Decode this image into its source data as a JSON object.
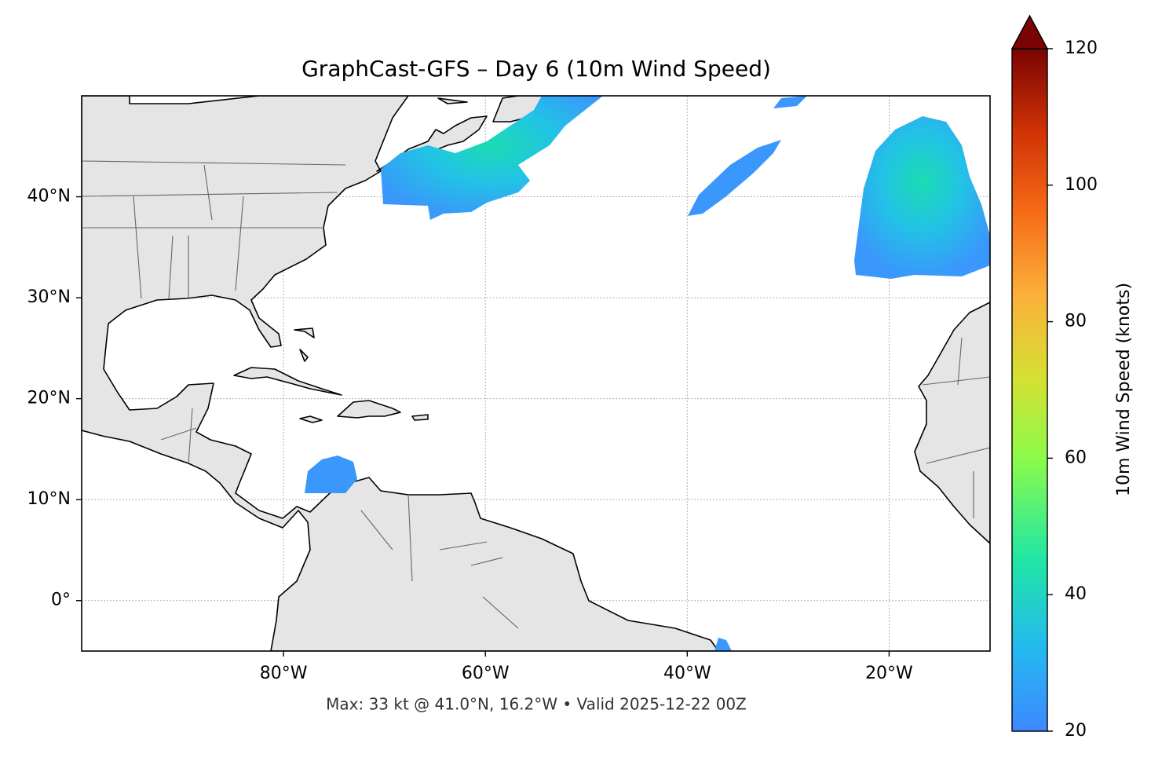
{
  "chart_data": {
    "type": "map",
    "title": "GraphCast-GFS – Day 6 (10m Wind Speed)",
    "footer": "Max: 33 kt @ 41.0°N, 16.2°W • Valid 2025-12-22 00Z",
    "xlim": [
      -100,
      -10
    ],
    "ylim": [
      -5,
      50
    ],
    "xticks": [
      {
        "value": -80,
        "label": "80°W"
      },
      {
        "value": -60,
        "label": "60°W"
      },
      {
        "value": -40,
        "label": "40°W"
      },
      {
        "value": -20,
        "label": "20°W"
      }
    ],
    "yticks": [
      {
        "value": 0,
        "label": "0°"
      },
      {
        "value": 10,
        "label": "10°N"
      },
      {
        "value": 20,
        "label": "20°N"
      },
      {
        "value": 30,
        "label": "30°N"
      },
      {
        "value": 40,
        "label": "40°N"
      }
    ],
    "grid": true,
    "colorbar": {
      "label": "10m Wind Speed (knots)",
      "lim": [
        20,
        120
      ],
      "ticks": [
        20,
        40,
        60,
        80,
        100,
        120
      ]
    }
  }
}
